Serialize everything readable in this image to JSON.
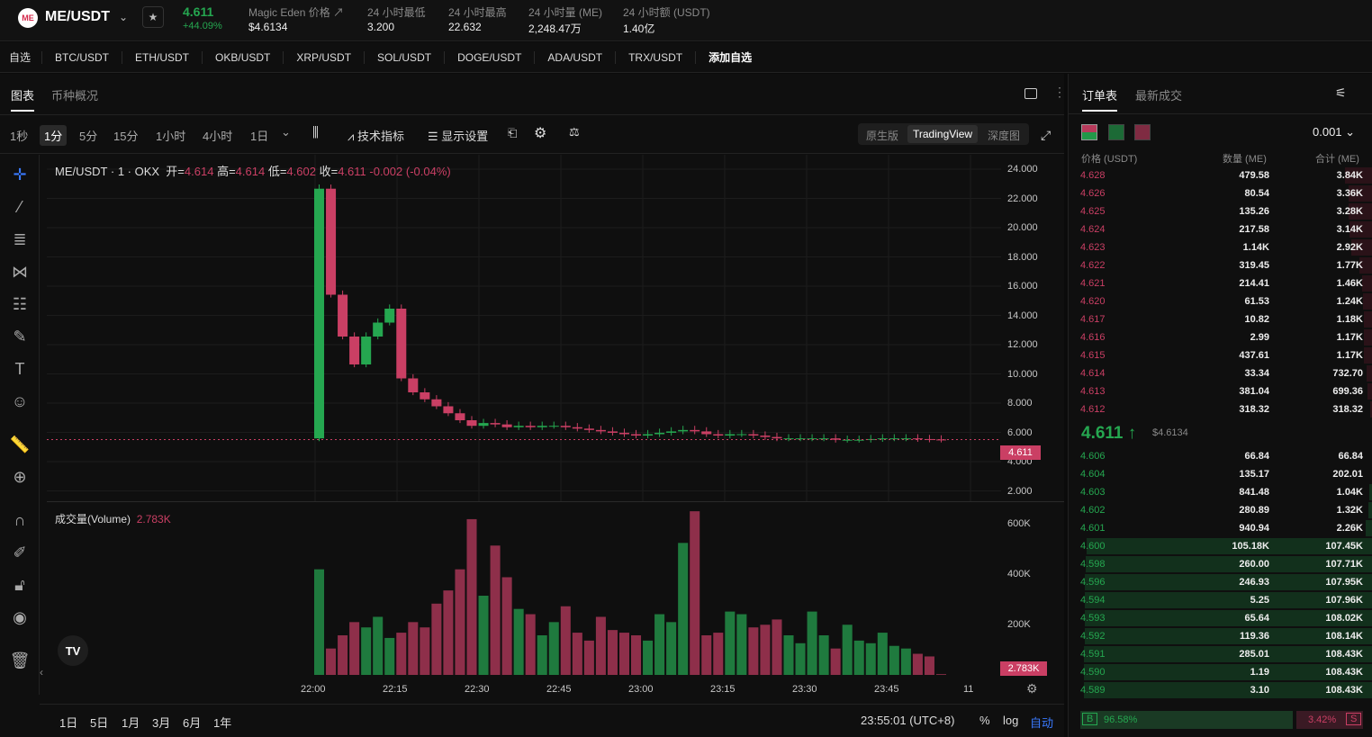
{
  "header": {
    "logo": "ME",
    "symbol": "ME/USDT",
    "last_price": "4.611",
    "change": "+44.09%",
    "stats": [
      {
        "label": "Magic Eden 价格 ↗",
        "value": "$4.6134"
      },
      {
        "label": "24 小时最低",
        "value": "3.200"
      },
      {
        "label": "24 小时最高",
        "value": "22.632"
      },
      {
        "label": "24 小时量 (ME)",
        "value": "2,248.47万"
      },
      {
        "label": "24 小时额 (USDT)",
        "value": "1.40亿"
      }
    ]
  },
  "favorites": {
    "title": "自选",
    "pairs": [
      "BTC/USDT",
      "ETH/USDT",
      "OKB/USDT",
      "XRP/USDT",
      "SOL/USDT",
      "DOGE/USDT",
      "ADA/USDT",
      "TRX/USDT"
    ],
    "add": "添加自选"
  },
  "chart_tabs": [
    "图表",
    "币种概况"
  ],
  "timeframes": [
    "1秒",
    "1分",
    "5分",
    "15分",
    "1小时",
    "4小时",
    "1日"
  ],
  "tools": {
    "indicators": "技术指标",
    "display": "显示设置"
  },
  "views": [
    "原生版",
    "TradingView",
    "深度图"
  ],
  "legend": {
    "title": "ME/USDT · 1 · OKX",
    "o_label": "开=",
    "o": "4.614",
    "h_label": "高=",
    "h": "4.614",
    "l_label": "低=",
    "l": "4.602",
    "c_label": "收=",
    "c": "4.611",
    "chg": "-0.002 (-0.04%)"
  },
  "volume": {
    "label": "成交量(Volume)",
    "value": "2.783K",
    "badge": "2.783K"
  },
  "price_badge": "4.611",
  "y_ticks": [
    "24.000",
    "22.000",
    "20.000",
    "18.000",
    "16.000",
    "14.000",
    "12.000",
    "10.000",
    "8.000",
    "6.000",
    "4.000",
    "2.000"
  ],
  "vol_ticks": [
    "600K",
    "400K",
    "200K"
  ],
  "x_ticks": [
    "22:00",
    "22:15",
    "22:30",
    "22:45",
    "23:00",
    "23:15",
    "23:30",
    "23:45",
    "11"
  ],
  "ranges": [
    "1日",
    "5日",
    "1月",
    "3月",
    "6月",
    "1年"
  ],
  "clock": "23:55:01 (UTC+8)",
  "scale": {
    "pct": "%",
    "log": "log",
    "auto": "自动"
  },
  "orderbook": {
    "tabs": [
      "订单表",
      "最新成交"
    ],
    "precision": "0.001",
    "headers": [
      "价格 (USDT)",
      "数量 (ME)",
      "合计 (ME)"
    ],
    "asks": [
      [
        "4.628",
        "479.58",
        "3.84K"
      ],
      [
        "4.626",
        "80.54",
        "3.36K"
      ],
      [
        "4.625",
        "135.26",
        "3.28K"
      ],
      [
        "4.624",
        "217.58",
        "3.14K"
      ],
      [
        "4.623",
        "1.14K",
        "2.92K"
      ],
      [
        "4.622",
        "319.45",
        "1.77K"
      ],
      [
        "4.621",
        "214.41",
        "1.46K"
      ],
      [
        "4.620",
        "61.53",
        "1.24K"
      ],
      [
        "4.617",
        "10.82",
        "1.18K"
      ],
      [
        "4.616",
        "2.99",
        "1.17K"
      ],
      [
        "4.615",
        "437.61",
        "1.17K"
      ],
      [
        "4.614",
        "33.34",
        "732.70"
      ],
      [
        "4.613",
        "381.04",
        "699.36"
      ],
      [
        "4.612",
        "318.32",
        "318.32"
      ]
    ],
    "mid": "4.611",
    "mid_usd": "$4.6134",
    "bids": [
      [
        "4.606",
        "66.84",
        "66.84"
      ],
      [
        "4.604",
        "135.17",
        "202.01"
      ],
      [
        "4.603",
        "841.48",
        "1.04K"
      ],
      [
        "4.602",
        "280.89",
        "1.32K"
      ],
      [
        "4.601",
        "940.94",
        "2.26K"
      ],
      [
        "4.600",
        "105.18K",
        "107.45K"
      ],
      [
        "4.598",
        "260.00",
        "107.71K"
      ],
      [
        "4.596",
        "246.93",
        "107.95K"
      ],
      [
        "4.594",
        "5.25",
        "107.96K"
      ],
      [
        "4.593",
        "65.64",
        "108.02K"
      ],
      [
        "4.592",
        "119.36",
        "108.14K"
      ],
      [
        "4.591",
        "285.01",
        "108.43K"
      ],
      [
        "4.590",
        "1.19",
        "108.43K"
      ],
      [
        "4.589",
        "3.10",
        "108.43K"
      ]
    ],
    "buy_pct": "96.58%",
    "sell_pct": "3.42%",
    "buy": "B",
    "sell": "S"
  },
  "chart_data": {
    "type": "candlestick",
    "x_range": [
      "22:00",
      "23:55"
    ],
    "ylim": [
      2,
      24
    ],
    "vol_ylim": [
      0,
      600000
    ],
    "close": [
      22.6,
      15,
      12,
      10,
      12,
      13,
      14,
      9,
      8,
      7.5,
      7,
      6.5,
      6,
      5.6,
      5.8,
      5.7,
      5.5,
      5.6,
      5.5,
      5.6,
      5.6,
      5.5,
      5.4,
      5.3,
      5.2,
      5.1,
      5,
      4.9,
      5,
      5.1,
      5.2,
      5.3,
      5.2,
      5,
      4.9,
      5,
      5,
      4.9,
      4.8,
      4.7,
      4.7,
      4.7,
      4.7,
      4.7,
      4.6,
      4.6,
      4.6,
      4.65,
      4.7,
      4.7,
      4.7,
      4.65,
      4.62,
      4.611
    ],
    "volume": [
      400000,
      100000,
      150000,
      200000,
      180000,
      220000,
      140000,
      160000,
      200000,
      180000,
      270000,
      320000,
      400000,
      590000,
      300000,
      490000,
      370000,
      250000,
      230000,
      150000,
      200000,
      260000,
      160000,
      130000,
      220000,
      170000,
      160000,
      150000,
      130000,
      230000,
      200000,
      500000,
      620000,
      150000,
      160000,
      240000,
      230000,
      180000,
      190000,
      210000,
      150000,
      120000,
      240000,
      150000,
      100000,
      190000,
      130000,
      120000,
      160000,
      110000,
      100000,
      80000,
      70000,
      2783
    ]
  }
}
